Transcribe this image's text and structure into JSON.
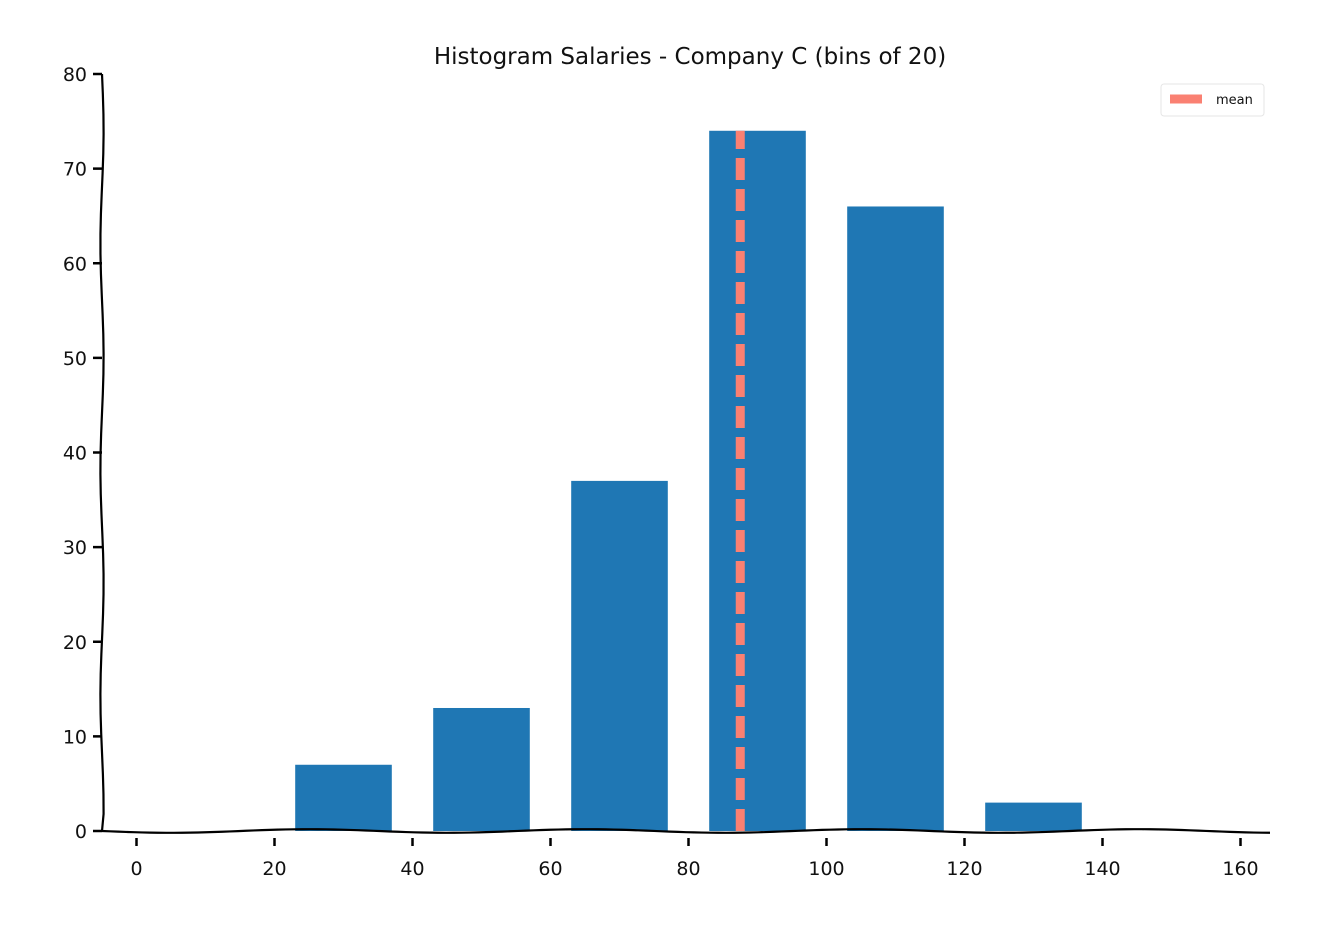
{
  "chart_data": {
    "type": "bar",
    "title": "Histogram Salaries - Company C (bins of 20)",
    "xlabel": "",
    "ylabel": "",
    "xlim": [
      -5,
      165
    ],
    "ylim": [
      0,
      80
    ],
    "x_ticks": [
      0,
      20,
      40,
      60,
      80,
      100,
      120,
      140,
      160
    ],
    "y_ticks": [
      0,
      10,
      20,
      30,
      40,
      50,
      60,
      70,
      80
    ],
    "bar_width": 14,
    "bars": [
      {
        "x": 30,
        "value": 7
      },
      {
        "x": 50,
        "value": 13
      },
      {
        "x": 70,
        "value": 37
      },
      {
        "x": 90,
        "value": 74
      },
      {
        "x": 110,
        "value": 66
      },
      {
        "x": 130,
        "value": 3
      }
    ],
    "mean_line": {
      "x": 87.5,
      "label": "mean",
      "color": "#fa8072"
    },
    "bar_color": "#1f77b4",
    "grid": false,
    "legend_position": "top-right"
  }
}
